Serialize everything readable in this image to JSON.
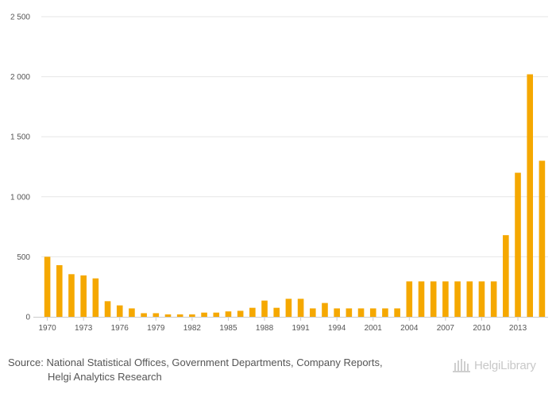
{
  "chart_data": {
    "type": "bar",
    "categories": [
      "1970",
      "1971",
      "1972",
      "1973",
      "1974",
      "1975",
      "1976",
      "1977",
      "1978",
      "1979",
      "1980",
      "1981",
      "1982",
      "1983",
      "1984",
      "1985",
      "1986",
      "1987",
      "1988",
      "1989",
      "1990",
      "1991",
      "1992",
      "1993",
      "1994",
      "1995",
      "2000",
      "2001",
      "2002",
      "2003",
      "2004",
      "2005",
      "2006",
      "2007",
      "2008",
      "2009",
      "2010",
      "2011",
      "2012",
      "2013",
      "2014",
      "2015"
    ],
    "x_tick_labels": [
      {
        "index": 0,
        "label": "1970"
      },
      {
        "index": 3,
        "label": "1973"
      },
      {
        "index": 6,
        "label": "1976"
      },
      {
        "index": 9,
        "label": "1979"
      },
      {
        "index": 12,
        "label": "1982"
      },
      {
        "index": 15,
        "label": "1985"
      },
      {
        "index": 18,
        "label": "1988"
      },
      {
        "index": 21,
        "label": "1991"
      },
      {
        "index": 24,
        "label": "1994"
      },
      {
        "index": 27,
        "label": "2001"
      },
      {
        "index": 30,
        "label": "2004"
      },
      {
        "index": 33,
        "label": "2007"
      },
      {
        "index": 36,
        "label": "2010"
      },
      {
        "index": 39,
        "label": "2013"
      }
    ],
    "values": [
      500,
      430,
      355,
      345,
      320,
      130,
      95,
      70,
      30,
      30,
      20,
      20,
      20,
      35,
      35,
      45,
      50,
      75,
      135,
      75,
      150,
      150,
      70,
      115,
      70,
      70,
      70,
      70,
      70,
      70,
      295,
      295,
      295,
      295,
      295,
      295,
      295,
      295,
      680,
      1200,
      2020,
      1300
    ],
    "ylim": [
      0,
      2500
    ],
    "y_ticks": [
      0,
      500,
      1000,
      1500,
      2000,
      2500
    ],
    "y_tick_labels": [
      "0",
      "500",
      "1 000",
      "1 500",
      "2 000",
      "2 500"
    ],
    "grid": true,
    "legend": "none",
    "title": "",
    "xlabel": "",
    "ylabel": ""
  },
  "colors": {
    "bar": "#f5a800",
    "grid": "#e6e6e6",
    "axis": "#cccccc"
  },
  "source": {
    "label": "Source:",
    "line1": "National Statistical Offices, Government Departments, Company Reports,",
    "line2": "Helgi Analytics Research"
  },
  "logo": {
    "text": "HelgiLibrary"
  }
}
